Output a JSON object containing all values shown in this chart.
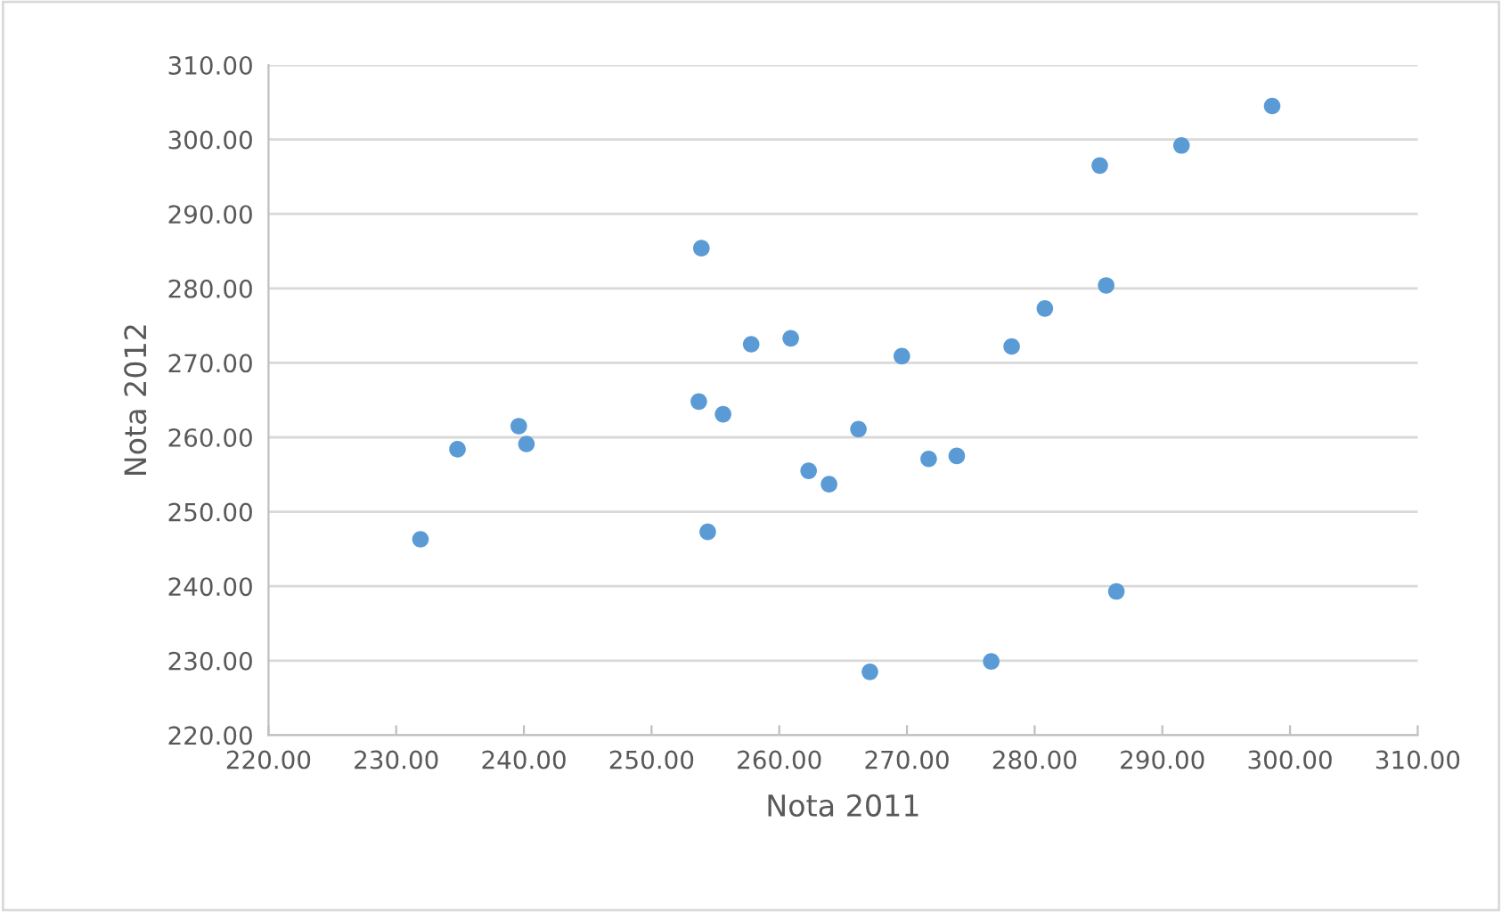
{
  "chart_data": {
    "type": "scatter",
    "xlabel": "Nota 2011",
    "ylabel": "Nota 2012",
    "x": [
      231.9,
      234.8,
      239.6,
      240.2,
      253.9,
      253.7,
      255.6,
      254.4,
      257.8,
      260.9,
      269.6,
      266.2,
      262.3,
      263.9,
      271.7,
      273.9,
      278.2,
      280.8,
      285.6,
      285.1,
      291.5,
      298.6,
      286.4,
      267.1,
      276.6
    ],
    "series": [
      {
        "color": "#5b9bd5",
        "values": [
          246.3,
          258.4,
          261.5,
          259.1,
          285.4,
          264.8,
          263.1,
          247.3,
          272.5,
          273.3,
          270.9,
          261.1,
          255.5,
          253.7,
          257.1,
          257.5,
          272.2,
          277.3,
          280.4,
          296.5,
          299.2,
          304.5,
          239.3,
          228.5,
          229.9
        ]
      }
    ],
    "marker": "circle",
    "grid": "y",
    "xlim": [
      220,
      310
    ],
    "ylim": [
      220,
      310
    ],
    "xticks": [
      {
        "value": 220,
        "label": "220.00"
      },
      {
        "value": 230,
        "label": "230.00"
      },
      {
        "value": 240,
        "label": "240.00"
      },
      {
        "value": 250,
        "label": "250.00"
      },
      {
        "value": 260,
        "label": "260.00"
      },
      {
        "value": 270,
        "label": "270.00"
      },
      {
        "value": 280,
        "label": "280.00"
      },
      {
        "value": 290,
        "label": "290.00"
      },
      {
        "value": 300,
        "label": "300.00"
      },
      {
        "value": 310,
        "label": "310.00"
      }
    ],
    "yticks": [
      {
        "value": 220,
        "label": "220.00"
      },
      {
        "value": 230,
        "label": "230.00"
      },
      {
        "value": 240,
        "label": "240.00"
      },
      {
        "value": 250,
        "label": "250.00"
      },
      {
        "value": 260,
        "label": "260.00"
      },
      {
        "value": 270,
        "label": "270.00"
      },
      {
        "value": 280,
        "label": "280.00"
      },
      {
        "value": 290,
        "label": "290.00"
      },
      {
        "value": 300,
        "label": "300.00"
      },
      {
        "value": 310,
        "label": "310.00"
      }
    ]
  }
}
